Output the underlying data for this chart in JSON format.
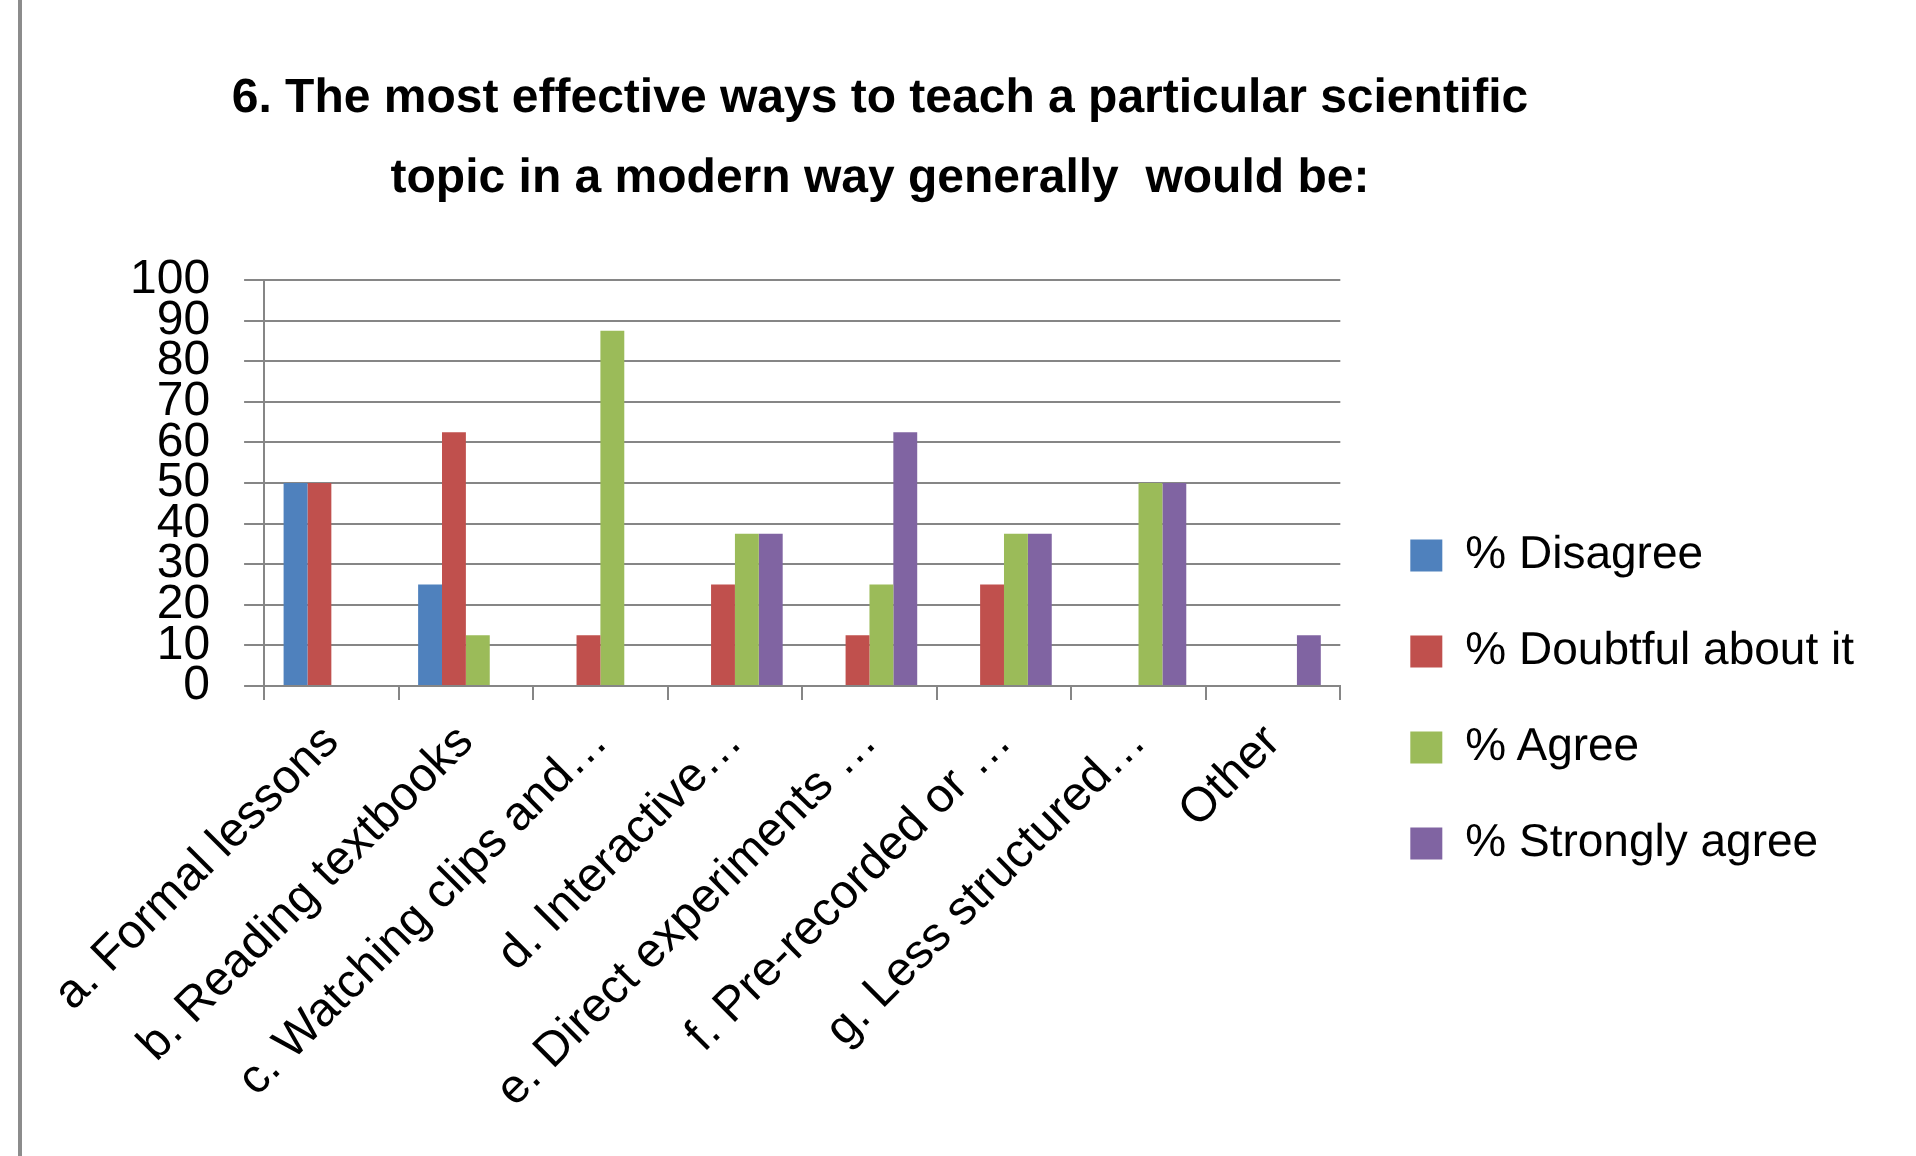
{
  "chart_data": {
    "type": "bar",
    "title": "6. The most effective ways to teach a particular scientific topic in a modern way generally  would be:",
    "categories": [
      "a. Formal lessons",
      "b. Reading textbooks",
      "c. Watching clips and…",
      "d. Interactive…",
      "e. Direct experiments …",
      "f. Pre-recorded or …",
      "g. Less structured…",
      "Other"
    ],
    "series": [
      {
        "name": "% Disagree",
        "color": "#4f81bd",
        "values": [
          50,
          25,
          0,
          0,
          0,
          0,
          0,
          0
        ]
      },
      {
        "name": "% Doubtful about it",
        "color": "#c0504d",
        "values": [
          50,
          62.5,
          12.5,
          25,
          12.5,
          25,
          0,
          0
        ]
      },
      {
        "name": "% Agree",
        "color": "#9bbb59",
        "values": [
          0,
          12.5,
          87.5,
          37.5,
          25,
          37.5,
          50,
          0
        ]
      },
      {
        "name": "% Strongly agree",
        "color": "#8064a2",
        "values": [
          0,
          0,
          0,
          37.5,
          62.5,
          37.5,
          50,
          12.5
        ]
      }
    ],
    "ylim": [
      0,
      100
    ],
    "yticks": [
      0,
      10,
      20,
      30,
      40,
      50,
      60,
      70,
      80,
      90,
      100
    ],
    "grid": "y",
    "legend": "right"
  }
}
